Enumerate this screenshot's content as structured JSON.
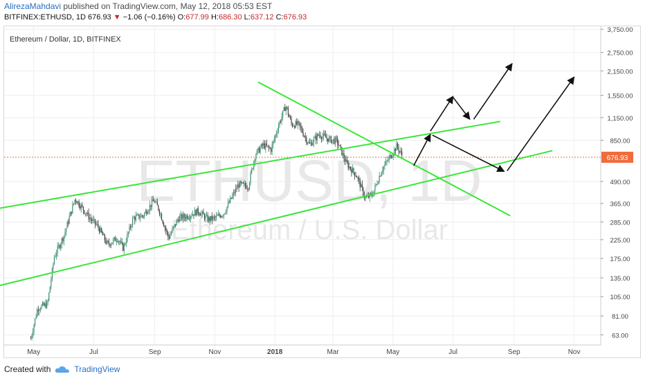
{
  "header": {
    "author": "AlirezaMahdavi",
    "published_text": " published on TradingView.com, May 12, 2018 05:53 EST"
  },
  "ticker": {
    "symbol": "BITFINEX:ETHUSD, 1D",
    "last": "676.93",
    "change": "−1.06 (−0.16%)",
    "o_label": "O:",
    "o_value": "677.99",
    "h_label": "H:",
    "h_value": "686.30",
    "l_label": "L:",
    "l_value": "637.12",
    "c_label": "C:",
    "c_value": "676.93"
  },
  "footer": {
    "created_with": "Created with",
    "brand": "TradingView"
  },
  "chart_data": {
    "type": "line",
    "title": "Ethereum / Dollar, 1D, BITFINEX",
    "watermark_symbol": "ETHUSD, 1D",
    "watermark_name": "Ethereum / U.S. Dollar",
    "y_scale": "log",
    "ylim": [
      55,
      3900
    ],
    "y_ticks": [
      3750,
      2750,
      2150,
      1550,
      1150,
      850,
      490,
      365,
      285,
      225,
      175,
      135,
      105,
      81,
      63
    ],
    "y_tick_labels": [
      "3,750.00",
      "2,750.00",
      "2,150.00",
      "1,550.00",
      "1,150.00",
      "850.00",
      "490.00",
      "365.00",
      "285.00",
      "225.00",
      "175.00",
      "135.00",
      "105.00",
      "81.00",
      "63.00"
    ],
    "current_price": 676.93,
    "current_price_label": "676.93",
    "x_ticks": [
      "May",
      "Jul",
      "Sep",
      "Nov",
      "2018",
      "Mar",
      "May",
      "Jul",
      "Sep",
      "Nov"
    ],
    "x_tick_dates": [
      "2017-05-01",
      "2017-07-01",
      "2017-09-01",
      "2017-11-01",
      "2018-01-01",
      "2018-03-01",
      "2018-05-01",
      "2018-07-01",
      "2018-09-01",
      "2018-11-01"
    ],
    "grid": true,
    "series": [
      {
        "values": [
          [
            "2017-04-28",
            60
          ],
          [
            "2017-05-05",
            90
          ],
          [
            "2017-05-15",
            95
          ],
          [
            "2017-05-22",
            180
          ],
          [
            "2017-06-01",
            240
          ],
          [
            "2017-06-12",
            390
          ],
          [
            "2017-06-20",
            340
          ],
          [
            "2017-06-27",
            300
          ],
          [
            "2017-07-05",
            270
          ],
          [
            "2017-07-15",
            210
          ],
          [
            "2017-07-25",
            230
          ],
          [
            "2017-07-31",
            200
          ],
          [
            "2017-08-10",
            300
          ],
          [
            "2017-08-20",
            310
          ],
          [
            "2017-08-31",
            380
          ],
          [
            "2017-09-05",
            340
          ],
          [
            "2017-09-15",
            230
          ],
          [
            "2017-09-25",
            300
          ],
          [
            "2017-10-05",
            310
          ],
          [
            "2017-10-15",
            330
          ],
          [
            "2017-10-25",
            295
          ],
          [
            "2017-11-01",
            300
          ],
          [
            "2017-11-10",
            320
          ],
          [
            "2017-11-25",
            470
          ],
          [
            "2017-12-05",
            460
          ],
          [
            "2017-12-12",
            700
          ],
          [
            "2017-12-20",
            800
          ],
          [
            "2017-12-28",
            750
          ],
          [
            "2018-01-05",
            1050
          ],
          [
            "2018-01-12",
            1350
          ],
          [
            "2018-01-18",
            1050
          ],
          [
            "2018-01-25",
            1050
          ],
          [
            "2018-02-05",
            800
          ],
          [
            "2018-02-15",
            920
          ],
          [
            "2018-02-25",
            860
          ],
          [
            "2018-03-05",
            840
          ],
          [
            "2018-03-15",
            620
          ],
          [
            "2018-03-25",
            530
          ],
          [
            "2018-04-03",
            390
          ],
          [
            "2018-04-10",
            410
          ],
          [
            "2018-04-20",
            580
          ],
          [
            "2018-04-28",
            680
          ],
          [
            "2018-05-05",
            790
          ],
          [
            "2018-05-11",
            676.93
          ]
        ]
      }
    ],
    "trendlines": [
      {
        "kind": "ascending-channel-upper",
        "from": [
          "2017-03-15",
          333
        ],
        "to": [
          "2018-08-18",
          1093
        ]
      },
      {
        "kind": "ascending-channel-lower",
        "from": [
          "2017-03-15",
          117
        ],
        "to": [
          "2018-10-10",
          740
        ]
      },
      {
        "kind": "descending",
        "from": [
          "2017-12-15",
          1850
        ],
        "to": [
          "2018-08-28",
          310
        ]
      }
    ],
    "projection_arrows": [
      {
        "from": [
          "2018-05-22",
          605
        ],
        "to": [
          "2018-06-08",
          920
        ]
      },
      {
        "from": [
          "2018-06-08",
          960
        ],
        "to": [
          "2018-07-01",
          1530
        ]
      },
      {
        "from": [
          "2018-07-01",
          1510
        ],
        "to": [
          "2018-07-18",
          1125
        ]
      },
      {
        "from": [
          "2018-07-22",
          1125
        ],
        "to": [
          "2018-08-30",
          2370
        ]
      },
      {
        "from": [
          "2018-06-10",
          910
        ],
        "to": [
          "2018-08-22",
          560
        ]
      },
      {
        "from": [
          "2018-08-25",
          565
        ],
        "to": [
          "2018-11-01",
          1980
        ]
      }
    ],
    "colors": {
      "trendline": "#39e639",
      "arrow": "#111111",
      "up_candle": "#3a8f6f",
      "down_candle": "#3f3f3f",
      "price_line": "#ef6c3c",
      "grid": "#eeeeee",
      "axis_text": "#444444",
      "watermark": "#e8e8e8"
    }
  }
}
